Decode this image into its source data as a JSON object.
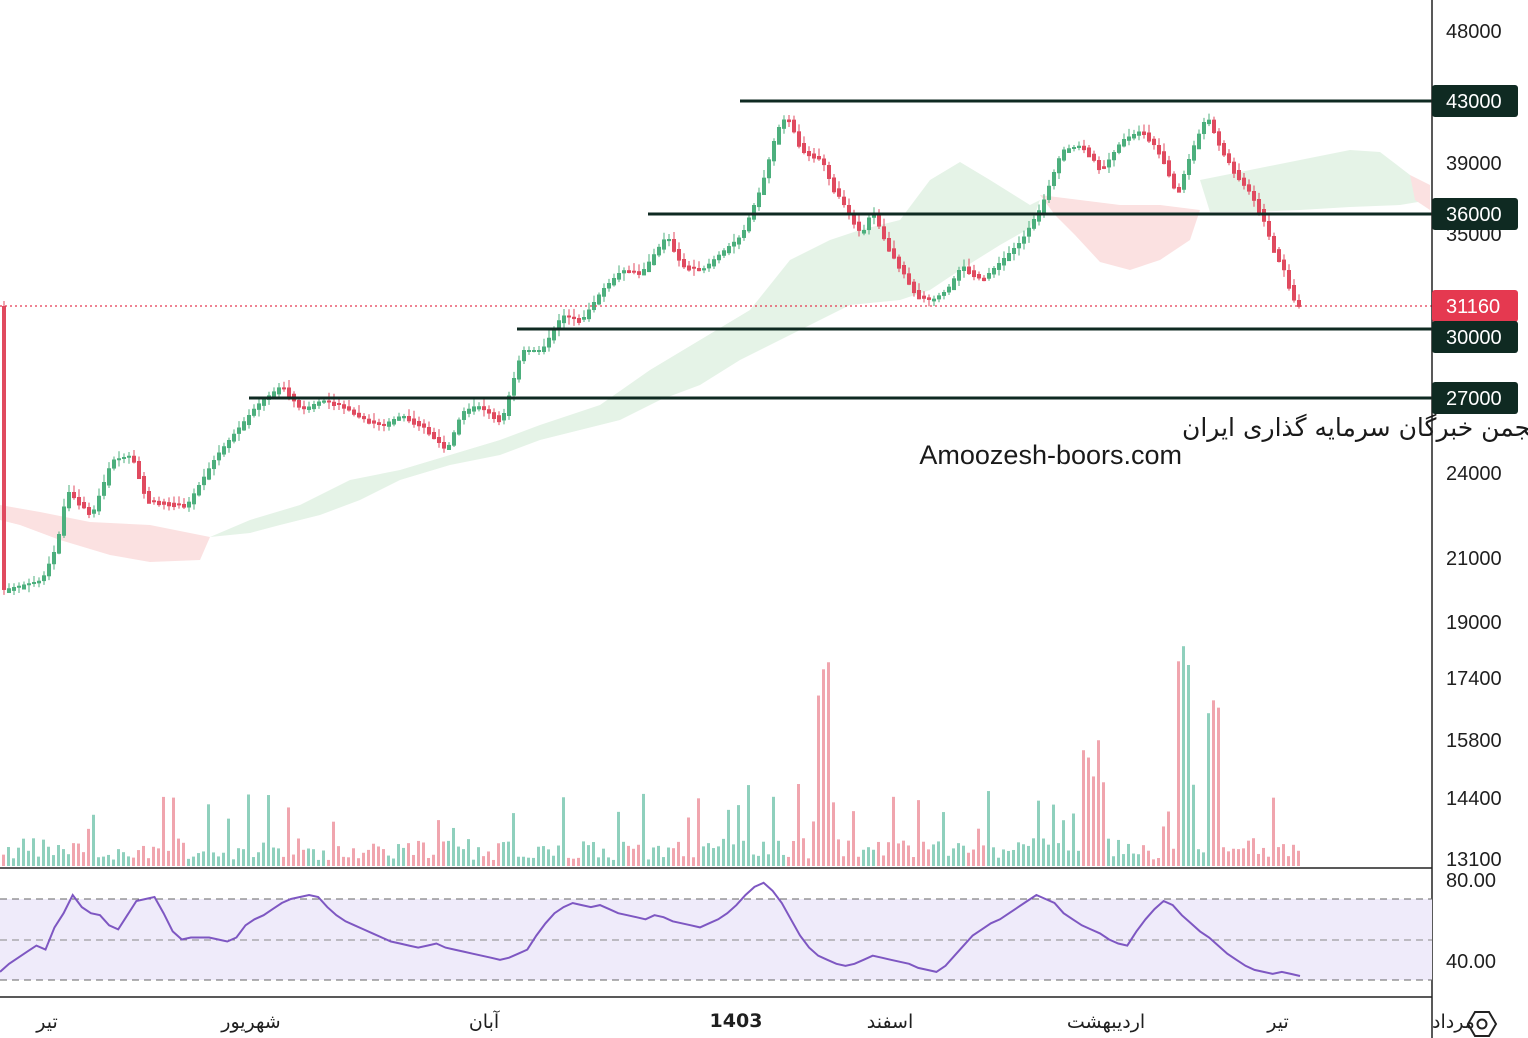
{
  "chart_data": {
    "type": "candlestick",
    "title": "",
    "price_axis": {
      "scale": "log",
      "range": [
        12700,
        50500
      ],
      "ticks": [
        "48000",
        "39000",
        "35000",
        "24000",
        "21000",
        "19000",
        "17400",
        "15800",
        "14400",
        "13100"
      ]
    },
    "levels": [
      {
        "value": 43000,
        "label": "43000"
      },
      {
        "value": 36000,
        "label": "36000"
      },
      {
        "value": 30000,
        "label": "30000"
      },
      {
        "value": 27000,
        "label": "27000"
      }
    ],
    "last_price": {
      "value": 31160,
      "label": "31160"
    },
    "time_axis": {
      "labels": [
        "تیر",
        "شهریور",
        "آبان",
        "1403",
        "اسفند",
        "اردیبهشت",
        "تیر",
        "مرداد"
      ],
      "bold_label": "1403"
    },
    "rsi": {
      "ticks": [
        "80.00",
        "40.00"
      ],
      "band": [
        30,
        70
      ],
      "midline": 50,
      "values": [
        34,
        38,
        41,
        44,
        47,
        45,
        56,
        63,
        72,
        66,
        63,
        62,
        57,
        55,
        62,
        69,
        70,
        71,
        63,
        54,
        50,
        51,
        51,
        51,
        50,
        49,
        51,
        57,
        60,
        62,
        65,
        68,
        70,
        71,
        72,
        71,
        66,
        62,
        59,
        57,
        55,
        53,
        51,
        49,
        48,
        47,
        46,
        47,
        48,
        46,
        45,
        44,
        43,
        42,
        41,
        40,
        41,
        43,
        45,
        52,
        58,
        63,
        66,
        68,
        67,
        66,
        67,
        65,
        63,
        62,
        61,
        60,
        62,
        61,
        59,
        58,
        57,
        56,
        58,
        60,
        63,
        67,
        72,
        76,
        78,
        74,
        68,
        60,
        52,
        46,
        42,
        40,
        38,
        37,
        38,
        40,
        42,
        41,
        40,
        39,
        38,
        36,
        35,
        34,
        37,
        42,
        47,
        52,
        55,
        58,
        60,
        63,
        66,
        69,
        72,
        70,
        68,
        63,
        60,
        57,
        55,
        53,
        50,
        48,
        47,
        54,
        60,
        65,
        69,
        67,
        62,
        58,
        54,
        51,
        47,
        43,
        40,
        37,
        35,
        34,
        33,
        34,
        33,
        32
      ]
    },
    "watermark": {
      "line1": "انجمن خبرگان سرمایه گذاری ایران",
      "line2": "Amoozesh-boors.com"
    },
    "colors": {
      "up": "#4caf7d",
      "down": "#e04a5f",
      "level_line": "#0f2a22",
      "last_price": "#e53950",
      "cloud_up": "#e5f3e7",
      "cloud_down": "#fbe1e1",
      "rsi_line": "#7e57c2",
      "rsi_band": "#efebfa",
      "volume_up": "#8fd0bd",
      "volume_down": "#f0a5ae"
    },
    "icons": {
      "settings": "hexagon-gear-icon"
    }
  }
}
